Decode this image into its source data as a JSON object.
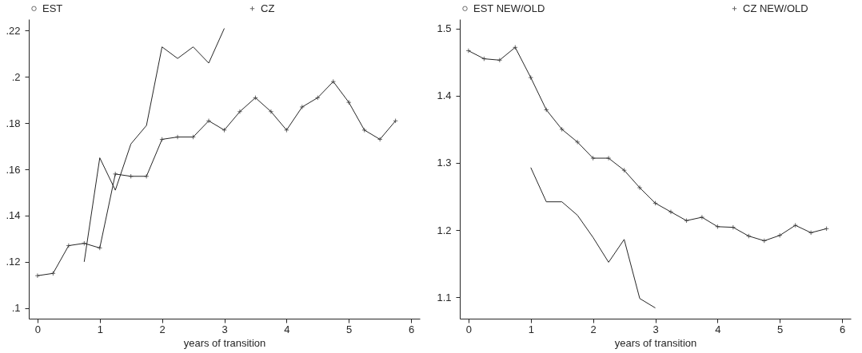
{
  "chart_data": [
    {
      "type": "line",
      "xlabel": "years of transition",
      "xlim": [
        -0.14,
        6.14
      ],
      "xticks": [
        0,
        1,
        2,
        3,
        4,
        5,
        6
      ],
      "ylim": [
        0.0954,
        0.225
      ],
      "yticks": [
        {
          "value": 0.1,
          "label": ".1"
        },
        {
          "value": 0.12,
          "label": ".12"
        },
        {
          "value": 0.14,
          "label": ".14"
        },
        {
          "value": 0.16,
          "label": ".16"
        },
        {
          "value": 0.18,
          "label": ".18"
        },
        {
          "value": 0.2,
          "label": ".2"
        },
        {
          "value": 0.22,
          "label": ".22"
        }
      ],
      "grid": false,
      "legend": "top",
      "line_style": "solid",
      "series": [
        {
          "name": "EST",
          "color": "#262626",
          "marker": "none",
          "x": [
            0.75,
            1,
            1.25,
            1.5,
            1.75,
            2,
            2.25,
            2.5,
            2.75,
            3
          ],
          "values": [
            0.12,
            0.165,
            0.151,
            0.171,
            0.179,
            0.213,
            0.208,
            0.213,
            0.206,
            0.221
          ]
        },
        {
          "name": "CZ",
          "color": "#262626",
          "marker": "cross",
          "x": [
            0,
            0.25,
            0.5,
            0.75,
            1,
            1.25,
            1.5,
            1.75,
            2,
            2.25,
            2.5,
            2.75,
            3,
            3.25,
            3.5,
            3.75,
            4,
            4.25,
            4.5,
            4.75,
            5,
            5.25,
            5.5,
            5.75
          ],
          "values": [
            0.114,
            0.115,
            0.127,
            0.128,
            0.126,
            0.158,
            0.157,
            0.157,
            0.173,
            0.174,
            0.174,
            0.181,
            0.177,
            0.185,
            0.191,
            0.185,
            0.177,
            0.187,
            0.191,
            0.198,
            0.189,
            0.177,
            0.173,
            0.181
          ]
        }
      ]
    },
    {
      "type": "line",
      "xlabel": "years of transition",
      "xlim": [
        -0.14,
        6.14
      ],
      "xticks": [
        0,
        1,
        2,
        3,
        4,
        5,
        6
      ],
      "ylim": [
        1.068,
        1.514
      ],
      "yticks": [
        1.1,
        1.2,
        1.3,
        1.4,
        1.5
      ],
      "grid": false,
      "legend": "top",
      "line_style": "solid",
      "series": [
        {
          "name": "EST NEW/OLD",
          "color": "#262626",
          "marker": "none",
          "x": [
            1,
            1.25,
            1.5,
            1.75,
            2,
            2.25,
            2.5,
            2.75,
            3
          ],
          "values": [
            1.293,
            1.242,
            1.242,
            1.222,
            1.189,
            1.152,
            1.186,
            1.098,
            1.084
          ]
        },
        {
          "name": "CZ NEW/OLD",
          "color": "#262626",
          "marker": "cross",
          "x": [
            0,
            0.25,
            0.5,
            0.75,
            1,
            1.25,
            1.5,
            1.75,
            2,
            2.25,
            2.5,
            2.75,
            3,
            3.25,
            3.5,
            3.75,
            4,
            4.25,
            4.5,
            4.75,
            5,
            5.25,
            5.5,
            5.75
          ],
          "values": [
            1.467,
            1.455,
            1.453,
            1.472,
            1.427,
            1.379,
            1.35,
            1.331,
            1.307,
            1.307,
            1.289,
            1.263,
            1.24,
            1.227,
            1.214,
            1.219,
            1.205,
            1.204,
            1.191,
            1.184,
            1.192,
            1.207,
            1.196,
            1.202
          ]
        }
      ]
    }
  ]
}
